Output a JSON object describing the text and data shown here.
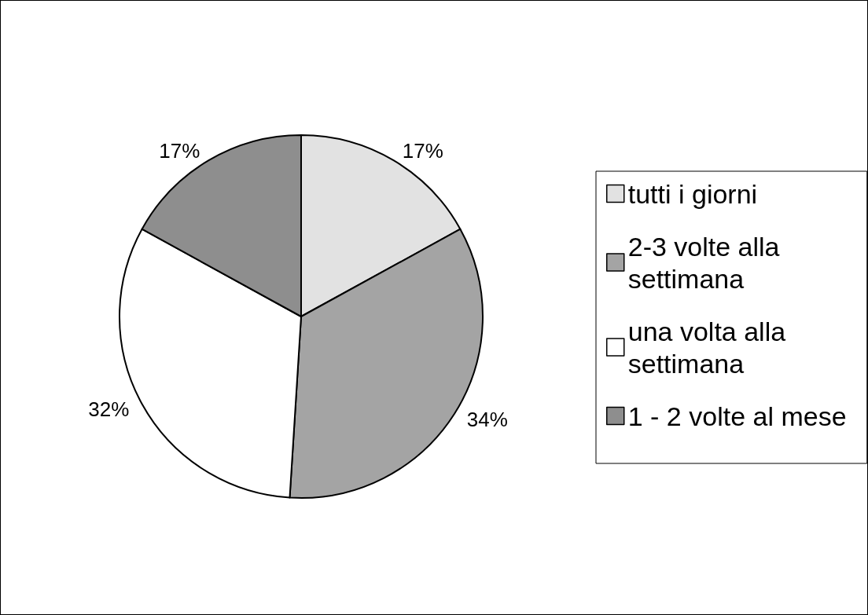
{
  "chart_data": {
    "type": "pie",
    "categories": [
      "tutti i giorni",
      "2-3 volte alla settimana",
      "una volta alla settimana",
      "1 - 2 volte al mese"
    ],
    "values": [
      17,
      34,
      32,
      17
    ],
    "colors": [
      "#e2e2e2",
      "#a4a4a4",
      "#ffffff",
      "#8e8e8e"
    ],
    "value_labels": [
      "17%",
      "34%",
      "32%",
      "17%"
    ],
    "legend": "right"
  }
}
